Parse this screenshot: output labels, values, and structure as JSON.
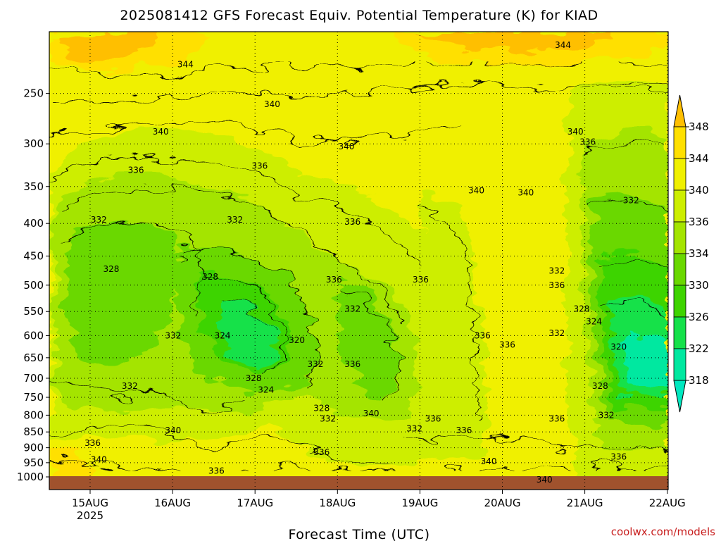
{
  "chart_data": {
    "type": "contour",
    "title": "2025081412 GFS Forecast Equiv. Potential Temperature (K) for KIAD",
    "xlabel": "Forecast Time (UTC)",
    "ylabel": "",
    "x_ticks": [
      "15AUG",
      "16AUG",
      "17AUG",
      "18AUG",
      "19AUG",
      "20AUG",
      "21AUG",
      "22AUG"
    ],
    "x_tick_sub": {
      "15AUG": "2025"
    },
    "y_ticks": [
      250,
      300,
      350,
      400,
      450,
      500,
      550,
      600,
      650,
      700,
      750,
      800,
      850,
      900,
      950,
      1000
    ],
    "y_scale": "log-pressure",
    "ylim": [
      1000,
      200
    ],
    "grid": true,
    "colorbar": {
      "labels": [
        348,
        344,
        340,
        336,
        334,
        330,
        326,
        322,
        318
      ],
      "colors": [
        "#ffbf00",
        "#ffe000",
        "#f0f000",
        "#cdee00",
        "#a4e400",
        "#6ad800",
        "#3ed400",
        "#15e14a",
        "#00e8a0",
        "#00e8c0"
      ],
      "placement": "right"
    },
    "contour_labels": [
      {
        "v": "344",
        "x": 0.22,
        "p": 225
      },
      {
        "v": "344",
        "x": 0.83,
        "p": 210
      },
      {
        "v": "340",
        "x": 0.36,
        "p": 260
      },
      {
        "v": "340",
        "x": 0.18,
        "p": 287
      },
      {
        "v": "340",
        "x": 0.48,
        "p": 303
      },
      {
        "v": "340",
        "x": 0.85,
        "p": 287
      },
      {
        "v": "340",
        "x": 0.69,
        "p": 355
      },
      {
        "v": "340",
        "x": 0.77,
        "p": 358
      },
      {
        "v": "336",
        "x": 0.14,
        "p": 330
      },
      {
        "v": "336",
        "x": 0.34,
        "p": 325
      },
      {
        "v": "336",
        "x": 0.49,
        "p": 398
      },
      {
        "v": "336",
        "x": 0.46,
        "p": 490
      },
      {
        "v": "336",
        "x": 0.6,
        "p": 490
      },
      {
        "v": "336",
        "x": 0.87,
        "p": 298
      },
      {
        "v": "332",
        "x": 0.08,
        "p": 395
      },
      {
        "v": "332",
        "x": 0.3,
        "p": 395
      },
      {
        "v": "332",
        "x": 0.94,
        "p": 368
      },
      {
        "v": "328",
        "x": 0.1,
        "p": 472
      },
      {
        "v": "328",
        "x": 0.26,
        "p": 485
      },
      {
        "v": "332",
        "x": 0.49,
        "p": 545
      },
      {
        "v": "332",
        "x": 0.2,
        "p": 600
      },
      {
        "v": "324",
        "x": 0.28,
        "p": 600
      },
      {
        "v": "320",
        "x": 0.4,
        "p": 610
      },
      {
        "v": "336",
        "x": 0.7,
        "p": 600
      },
      {
        "v": "336",
        "x": 0.74,
        "p": 620
      },
      {
        "v": "332",
        "x": 0.82,
        "p": 595
      },
      {
        "v": "332",
        "x": 0.82,
        "p": 475
      },
      {
        "v": "336",
        "x": 0.82,
        "p": 500
      },
      {
        "v": "328",
        "x": 0.86,
        "p": 545
      },
      {
        "v": "324",
        "x": 0.88,
        "p": 570
      },
      {
        "v": "320",
        "x": 0.92,
        "p": 625
      },
      {
        "v": "332",
        "x": 0.43,
        "p": 665
      },
      {
        "v": "336",
        "x": 0.49,
        "p": 665
      },
      {
        "v": "328",
        "x": 0.33,
        "p": 700
      },
      {
        "v": "332",
        "x": 0.13,
        "p": 720
      },
      {
        "v": "324",
        "x": 0.35,
        "p": 730
      },
      {
        "v": "328",
        "x": 0.44,
        "p": 780
      },
      {
        "v": "332",
        "x": 0.45,
        "p": 810
      },
      {
        "v": "340",
        "x": 0.52,
        "p": 795
      },
      {
        "v": "328",
        "x": 0.89,
        "p": 720
      },
      {
        "v": "332",
        "x": 0.9,
        "p": 800
      },
      {
        "v": "336",
        "x": 0.62,
        "p": 810
      },
      {
        "v": "336",
        "x": 0.82,
        "p": 810
      },
      {
        "v": "340",
        "x": 0.2,
        "p": 845
      },
      {
        "v": "332",
        "x": 0.59,
        "p": 840
      },
      {
        "v": "336",
        "x": 0.67,
        "p": 845
      },
      {
        "v": "336",
        "x": 0.07,
        "p": 885
      },
      {
        "v": "336",
        "x": 0.44,
        "p": 915
      },
      {
        "v": "336",
        "x": 0.92,
        "p": 930
      },
      {
        "v": "340",
        "x": 0.08,
        "p": 940
      },
      {
        "v": "340",
        "x": 0.71,
        "p": 945
      },
      {
        "v": "336",
        "x": 0.27,
        "p": 978
      },
      {
        "v": "340",
        "x": 0.8,
        "p": 1010
      }
    ]
  },
  "credit": "coolwx.com/models"
}
